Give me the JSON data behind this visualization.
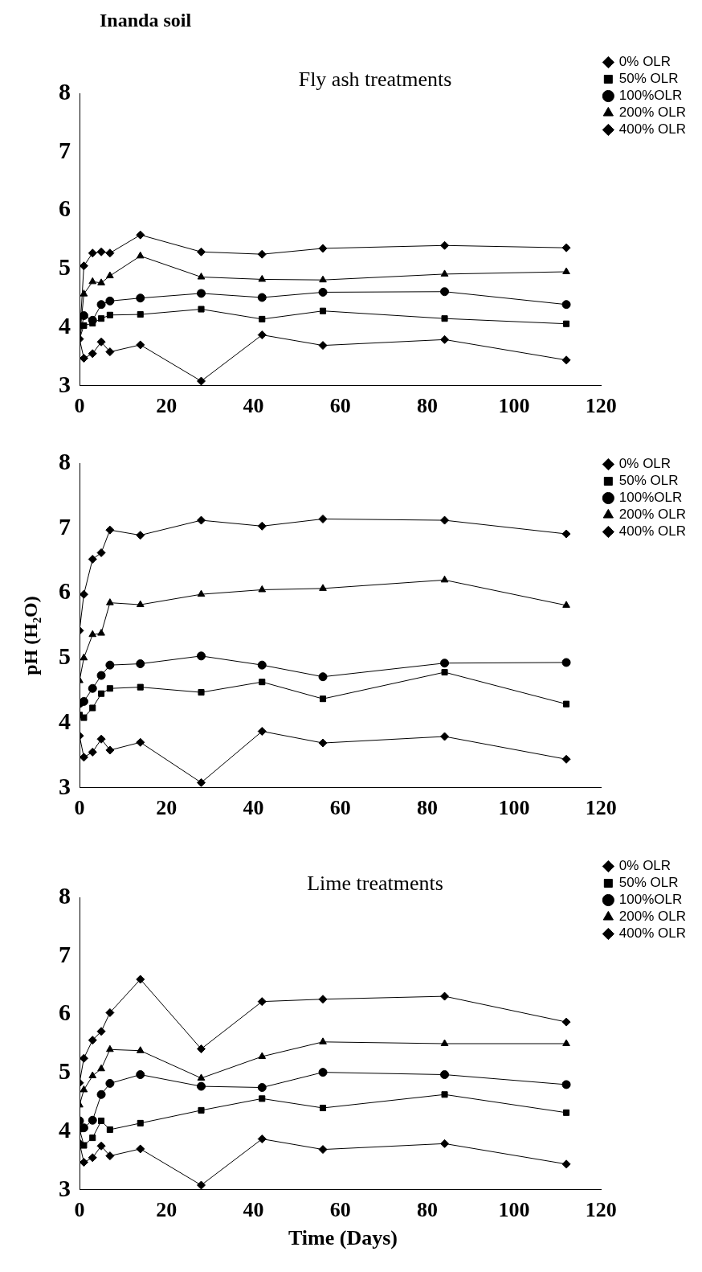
{
  "chart_data": [
    {
      "type": "line",
      "title": "Fly ash treatments",
      "annotations": [
        "Inanda soil"
      ],
      "x": [
        0,
        1,
        3,
        5,
        7,
        14,
        28,
        42,
        56,
        84,
        112
      ],
      "xlim": [
        0,
        120
      ],
      "xticks": [
        0,
        20,
        40,
        60,
        80,
        100,
        120
      ],
      "ylim": [
        3,
        8
      ],
      "yticks": [
        3,
        4,
        5,
        6,
        7,
        8
      ],
      "grid": false,
      "legend": "top right",
      "line_style": "solid",
      "series": [
        {
          "name": "0% OLR",
          "color": "#000000",
          "marker": "diamond",
          "values": [
            3.8,
            3.47,
            3.55,
            3.75,
            3.58,
            3.7,
            3.08,
            3.87,
            3.69,
            3.79,
            3.44
          ]
        },
        {
          "name": "50% OLR",
          "color": "#000000",
          "marker": "square",
          "values": [
            3.8,
            4.03,
            4.07,
            4.15,
            4.21,
            4.22,
            4.31,
            4.14,
            4.28,
            4.15,
            4.06
          ]
        },
        {
          "name": "100%OLR",
          "color": "#000000",
          "marker": "circle",
          "values": [
            3.8,
            4.2,
            4.12,
            4.39,
            4.45,
            4.5,
            4.58,
            4.51,
            4.6,
            4.61,
            4.39
          ]
        },
        {
          "name": "200% OLR",
          "color": "#000000",
          "marker": "triangle",
          "values": [
            3.8,
            4.57,
            4.78,
            4.76,
            4.88,
            5.22,
            4.86,
            4.82,
            4.81,
            4.91,
            4.95
          ]
        },
        {
          "name": "400% OLR",
          "color": "#000000",
          "marker": "diamond",
          "values": [
            3.8,
            5.05,
            5.27,
            5.29,
            5.27,
            5.58,
            5.29,
            5.25,
            5.35,
            5.4,
            5.36
          ]
        }
      ]
    },
    {
      "type": "line",
      "ylabel": "pH (H₂O)",
      "x": [
        0,
        1,
        3,
        5,
        7,
        14,
        28,
        42,
        56,
        84,
        112
      ],
      "xlim": [
        0,
        120
      ],
      "xticks": [
        0,
        20,
        40,
        60,
        80,
        100,
        120
      ],
      "ylim": [
        3,
        8
      ],
      "yticks": [
        3,
        4,
        5,
        6,
        7,
        8
      ],
      "grid": false,
      "legend": "top right",
      "line_style": "solid",
      "series": [
        {
          "name": "0% OLR",
          "color": "#000000",
          "marker": "diamond",
          "values": [
            3.8,
            3.47,
            3.55,
            3.75,
            3.58,
            3.7,
            3.08,
            3.87,
            3.69,
            3.79,
            3.44
          ]
        },
        {
          "name": "50% OLR",
          "color": "#000000",
          "marker": "square",
          "values": [
            4.12,
            4.08,
            4.23,
            4.45,
            4.53,
            4.55,
            4.47,
            4.63,
            4.37,
            4.78,
            4.29
          ]
        },
        {
          "name": "100%OLR",
          "color": "#000000",
          "marker": "circle",
          "values": [
            4.3,
            4.33,
            4.53,
            4.73,
            4.89,
            4.91,
            5.03,
            4.89,
            4.71,
            4.92,
            4.93
          ]
        },
        {
          "name": "200% OLR",
          "color": "#000000",
          "marker": "triangle",
          "values": [
            4.65,
            5.0,
            5.36,
            5.38,
            5.85,
            5.82,
            5.98,
            6.05,
            6.07,
            6.2,
            5.81
          ]
        },
        {
          "name": "400% OLR",
          "color": "#000000",
          "marker": "diamond",
          "values": [
            5.42,
            5.98,
            6.52,
            6.62,
            6.97,
            6.89,
            7.12,
            7.03,
            7.14,
            7.12,
            6.91
          ]
        }
      ]
    },
    {
      "type": "line",
      "title": "Lime treatments",
      "xlabel": "Time (Days)",
      "x": [
        0,
        1,
        3,
        5,
        7,
        14,
        28,
        42,
        56,
        84,
        112
      ],
      "xlim": [
        0,
        120
      ],
      "xticks": [
        0,
        20,
        40,
        60,
        80,
        100,
        120
      ],
      "ylim": [
        3,
        8
      ],
      "yticks": [
        3,
        4,
        5,
        6,
        7,
        8
      ],
      "grid": false,
      "legend": "top right",
      "line_style": "solid",
      "series": [
        {
          "name": "0% OLR",
          "color": "#000000",
          "marker": "diamond",
          "values": [
            3.8,
            3.47,
            3.55,
            3.75,
            3.58,
            3.7,
            3.08,
            3.87,
            3.69,
            3.79,
            3.44
          ]
        },
        {
          "name": "50% OLR",
          "color": "#000000",
          "marker": "square",
          "values": [
            4.04,
            3.76,
            3.89,
            4.18,
            4.03,
            4.14,
            4.36,
            4.56,
            4.4,
            4.63,
            4.32
          ]
        },
        {
          "name": "100%OLR",
          "color": "#000000",
          "marker": "circle",
          "values": [
            4.18,
            4.06,
            4.19,
            4.63,
            4.82,
            4.97,
            4.77,
            4.75,
            5.01,
            4.97,
            4.8
          ]
        },
        {
          "name": "200% OLR",
          "color": "#000000",
          "marker": "triangle",
          "values": [
            4.45,
            4.71,
            4.95,
            5.07,
            5.4,
            5.38,
            4.91,
            5.28,
            5.53,
            5.5,
            5.5
          ]
        },
        {
          "name": "400% OLR",
          "color": "#000000",
          "marker": "diamond",
          "values": [
            4.83,
            5.25,
            5.56,
            5.71,
            6.03,
            6.6,
            5.41,
            6.22,
            6.26,
            6.31,
            5.87
          ]
        }
      ]
    }
  ]
}
